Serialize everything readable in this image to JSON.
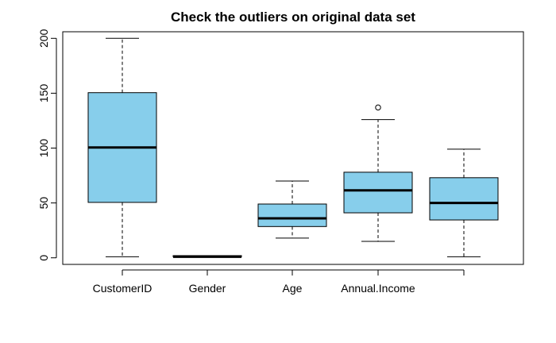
{
  "chart_data": {
    "type": "boxplot",
    "title": "Check the outliers on original data set",
    "xlabel": "",
    "ylabel": "",
    "ylim": [
      -6,
      206
    ],
    "yticks": [
      0,
      50,
      100,
      150,
      200
    ],
    "grid": false,
    "box_fill": "#87CEEB",
    "stroke_color": "#000000",
    "categories": [
      "CustomerID",
      "Gender",
      "Age",
      "Annual.Income",
      ""
    ],
    "series": [
      {
        "min": 1,
        "q1": 50.5,
        "median": 100.5,
        "q3": 150.5,
        "max": 200,
        "outliers": []
      },
      {
        "min": 1,
        "q1": 1,
        "median": 1,
        "q3": 2,
        "max": 2,
        "outliers": []
      },
      {
        "min": 18,
        "q1": 28.5,
        "median": 36,
        "q3": 49,
        "max": 70,
        "outliers": []
      },
      {
        "min": 15,
        "q1": 41,
        "median": 61.5,
        "q3": 78,
        "max": 126,
        "outliers": [
          137
        ]
      },
      {
        "min": 1,
        "q1": 34.5,
        "median": 50,
        "q3": 73,
        "max": 99,
        "outliers": []
      }
    ]
  }
}
